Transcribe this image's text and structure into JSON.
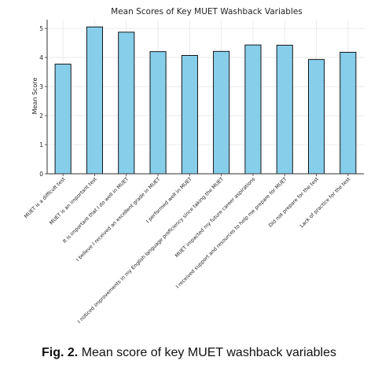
{
  "chart_data": {
    "type": "bar",
    "title": "Mean Scores of Key MUET Washback Variables",
    "xlabel": "",
    "ylabel": "Mean Score",
    "ylim": [
      0,
      5.3
    ],
    "yticks": [
      0,
      1,
      2,
      3,
      4,
      5
    ],
    "grid": true,
    "bar_color": "#87CEEB",
    "edge_color": "#000000",
    "categories": [
      "MUET is a difficult test",
      "MUET is an important test",
      "It is important that I do well in MUET",
      "I believe I received an excellent grade in MUET",
      "I performed well in MUET",
      "I noticed improvements in my English language proficiency since taking the MUET",
      "MUET impacted my future career aspirations",
      "I received support and resources to help me prepare for MUET",
      "Did not prepare for the test",
      "Lack of practice for the test"
    ],
    "values": [
      3.77,
      5.05,
      4.87,
      4.2,
      4.07,
      4.21,
      4.43,
      4.42,
      3.93,
      4.18
    ]
  },
  "caption": {
    "label": "Fig. 2.",
    "text": "Mean score of key MUET washback variables"
  }
}
